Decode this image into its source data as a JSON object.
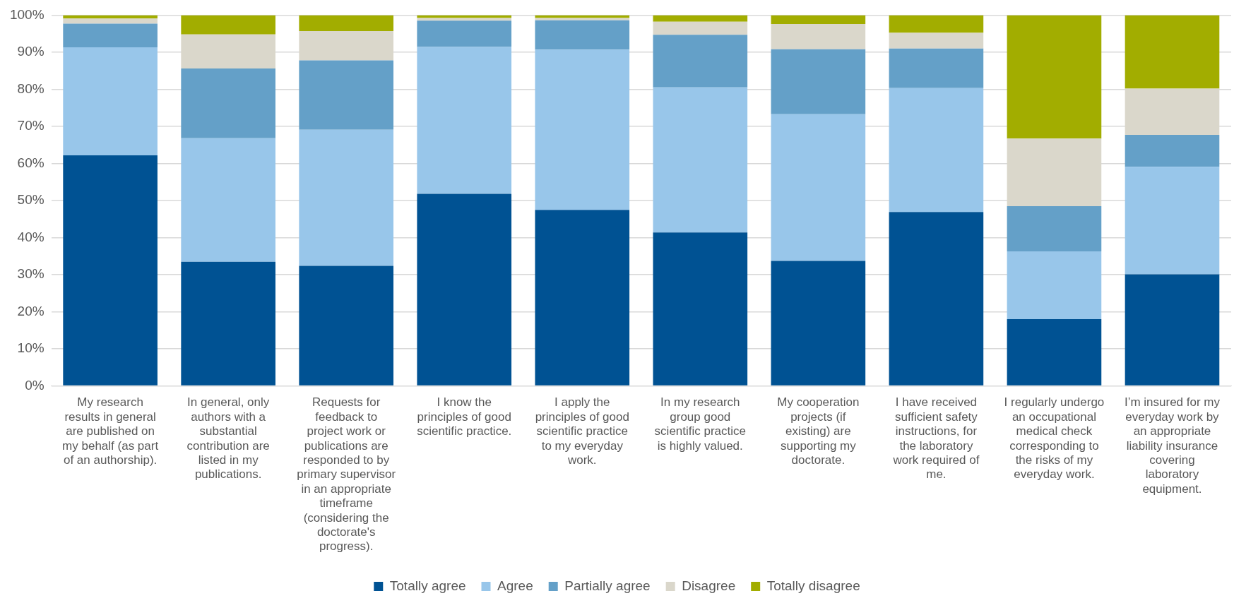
{
  "chart_data": {
    "type": "bar",
    "stacked": true,
    "categories": [
      "My research results in general are published on my behalf (as part of an authorship).",
      "In general, only authors with a substantial contribution are listed in my publications.",
      "Requests for feedback to project work or publications are responded to by primary supervisor in an appropriate timeframe (considering the doctorate's progress).",
      "I know the principles of good scientific practice.",
      "I apply the principles of good scientific practice to my everyday work.",
      "In my research group good scientific practice is highly valued.",
      "My cooperation projects (if existing) are supporting my doctorate.",
      "I have received sufficient safety instructions, for the laboratory work required of me.",
      "I regularly undergo an occupational medical check corresponding to the risks of my everyday work.",
      "I’m insured for my everyday work by an appropriate liability insurance covering laboratory equipment."
    ],
    "series": [
      {
        "name": "Totally agree",
        "color": "#005293",
        "values": [
          62.2,
          33.5,
          32.4,
          51.8,
          47.5,
          41.4,
          33.7,
          46.9,
          18.0,
          30.1
        ]
      },
      {
        "name": "Agree",
        "color": "#98c6ea",
        "values": [
          29.1,
          33.3,
          36.7,
          39.6,
          43.2,
          39.1,
          39.6,
          33.4,
          18.3,
          29.0
        ]
      },
      {
        "name": "Partially agree",
        "color": "#64a0c8",
        "values": [
          6.4,
          18.8,
          18.7,
          7.1,
          7.9,
          14.2,
          17.5,
          10.7,
          12.2,
          8.6
        ]
      },
      {
        "name": "Disagree",
        "color": "#dad7cb",
        "values": [
          1.4,
          9.2,
          7.9,
          0.7,
          0.6,
          3.5,
          6.8,
          4.2,
          18.2,
          12.5
        ]
      },
      {
        "name": "Totally disagree",
        "color": "#a2ad00",
        "values": [
          0.9,
          5.2,
          4.3,
          0.8,
          0.8,
          1.8,
          2.4,
          4.8,
          33.3,
          19.8
        ]
      }
    ],
    "ylim": [
      0,
      100
    ],
    "yticks": [
      {
        "value": 0,
        "label": "0%"
      },
      {
        "value": 10,
        "label": "10%"
      },
      {
        "value": 20,
        "label": "20%"
      },
      {
        "value": 30,
        "label": "30%"
      },
      {
        "value": 40,
        "label": "40%"
      },
      {
        "value": 50,
        "label": "50%"
      },
      {
        "value": 60,
        "label": "60%"
      },
      {
        "value": 70,
        "label": "70%"
      },
      {
        "value": 80,
        "label": "80%"
      },
      {
        "value": 90,
        "label": "90%"
      },
      {
        "value": 100,
        "label": "100%"
      }
    ],
    "grid": "y",
    "legend": "bottom"
  }
}
